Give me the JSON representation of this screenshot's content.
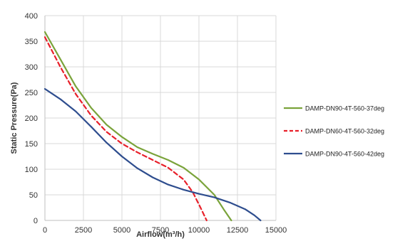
{
  "chart_data": {
    "type": "line",
    "title": "",
    "xlabel": "Airflow(m³/h)",
    "ylabel": "Static Pressure(Pa)",
    "xlim": [
      0,
      15000
    ],
    "ylim": [
      0,
      400
    ],
    "xticks": [
      0,
      2500,
      5000,
      7500,
      10000,
      12500,
      15000
    ],
    "yticks": [
      0,
      50,
      100,
      150,
      200,
      250,
      300,
      350,
      400
    ],
    "grid": true,
    "legend_position": "right",
    "series": [
      {
        "name": "DAMP-DN90-4T-560-37deg",
        "color": "#7aa33a",
        "dash": "solid",
        "points": [
          [
            0,
            368
          ],
          [
            1000,
            315
          ],
          [
            2000,
            262
          ],
          [
            3000,
            220
          ],
          [
            4000,
            187
          ],
          [
            5000,
            163
          ],
          [
            6000,
            143
          ],
          [
            7000,
            130
          ],
          [
            8000,
            118
          ],
          [
            9000,
            103
          ],
          [
            10000,
            80
          ],
          [
            11000,
            50
          ],
          [
            11600,
            22
          ],
          [
            12100,
            0
          ]
        ]
      },
      {
        "name": "DAMP-DN60-4T-560-32deg",
        "color": "#e8202a",
        "dash": "dashed",
        "points": [
          [
            0,
            358
          ],
          [
            1000,
            300
          ],
          [
            2000,
            247
          ],
          [
            3000,
            205
          ],
          [
            4000,
            173
          ],
          [
            5000,
            150
          ],
          [
            6000,
            133
          ],
          [
            7000,
            118
          ],
          [
            8000,
            103
          ],
          [
            9000,
            80
          ],
          [
            9600,
            55
          ],
          [
            10100,
            25
          ],
          [
            10500,
            0
          ]
        ]
      },
      {
        "name": "DAMP-DN90-4T-560-42deg",
        "color": "#2e4d8e",
        "dash": "solid",
        "points": [
          [
            0,
            257
          ],
          [
            1000,
            237
          ],
          [
            2000,
            213
          ],
          [
            3000,
            183
          ],
          [
            4000,
            152
          ],
          [
            5000,
            125
          ],
          [
            6000,
            102
          ],
          [
            7000,
            84
          ],
          [
            8000,
            70
          ],
          [
            9000,
            60
          ],
          [
            10000,
            52
          ],
          [
            11000,
            45
          ],
          [
            12000,
            35
          ],
          [
            13000,
            22
          ],
          [
            13600,
            10
          ],
          [
            14000,
            0
          ]
        ]
      }
    ]
  }
}
